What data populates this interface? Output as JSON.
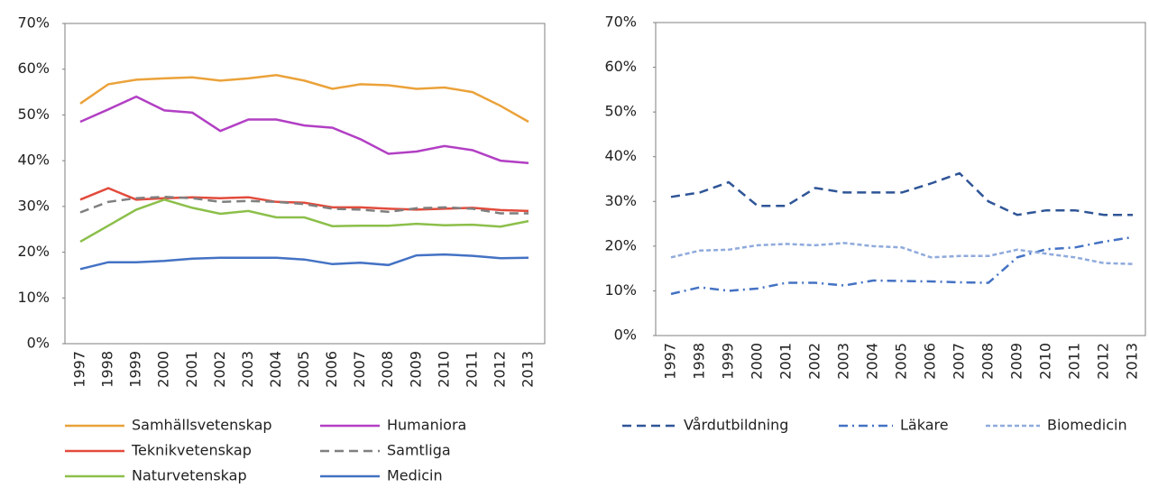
{
  "chart_data": [
    {
      "type": "line",
      "categories": [
        "1997",
        "1998",
        "1999",
        "2000",
        "2001",
        "2002",
        "2003",
        "2004",
        "2005",
        "2006",
        "2007",
        "2008",
        "2009",
        "2010",
        "2011",
        "2012",
        "2013"
      ],
      "ylim": [
        0,
        70
      ],
      "yticks": [
        {
          "value": 0,
          "label": "0%"
        },
        {
          "value": 10,
          "label": "10%"
        },
        {
          "value": 20,
          "label": "20%"
        },
        {
          "value": 30,
          "label": "30%"
        },
        {
          "value": 40,
          "label": "40%"
        },
        {
          "value": 50,
          "label": "50%"
        },
        {
          "value": 60,
          "label": "60%"
        },
        {
          "value": 70,
          "label": "70%"
        }
      ],
      "series": [
        {
          "name": "Samhällsvetenskap",
          "color": "#eba23a",
          "linestyle": "solid",
          "values": [
            52.5,
            56.7,
            57.7,
            58,
            58.2,
            57.5,
            58,
            58.7,
            57.5,
            55.7,
            56.7,
            56.5,
            55.7,
            56,
            55,
            52,
            48.5
          ]
        },
        {
          "name": "Humaniora",
          "color": "#b23fc4",
          "linestyle": "solid",
          "values": [
            48.5,
            51.2,
            54,
            51,
            50.5,
            46.5,
            49,
            49,
            47.7,
            47.2,
            44.7,
            41.5,
            42,
            43.2,
            42.3,
            40,
            39.5
          ]
        },
        {
          "name": "Teknikvetenskap",
          "color": "#e24b3c",
          "linestyle": "solid",
          "values": [
            31.5,
            34,
            31.5,
            31.8,
            32,
            31.8,
            32,
            31,
            30.8,
            29.8,
            29.8,
            29.5,
            29.3,
            29.5,
            29.7,
            29.2,
            29
          ]
        },
        {
          "name": "Samtliga",
          "color": "#7f7f7f",
          "linestyle": "dashed",
          "values": [
            28.7,
            31,
            31.8,
            32.1,
            31.8,
            31,
            31.2,
            31,
            30.5,
            29.5,
            29.3,
            28.8,
            29.6,
            29.8,
            29.5,
            28.5,
            28.5
          ]
        },
        {
          "name": "Naturvetenskap",
          "color": "#8cbf4a",
          "linestyle": "solid",
          "values": [
            22.3,
            25.8,
            29.3,
            31.5,
            29.7,
            28.4,
            29,
            27.6,
            27.6,
            25.7,
            25.8,
            25.8,
            26.2,
            25.9,
            26,
            25.6,
            26.8
          ]
        },
        {
          "name": "Medicin",
          "color": "#4472c4",
          "linestyle": "solid",
          "values": [
            16.3,
            17.8,
            17.8,
            18.1,
            18.6,
            18.8,
            18.8,
            18.8,
            18.4,
            17.4,
            17.7,
            17.2,
            19.3,
            19.5,
            19.2,
            18.7,
            18.8
          ]
        }
      ]
    },
    {
      "type": "line",
      "categories": [
        "1997",
        "1998",
        "1999",
        "2000",
        "2001",
        "2002",
        "2003",
        "2004",
        "2005",
        "2006",
        "2007",
        "2008",
        "2009",
        "2010",
        "2011",
        "2012",
        "2013"
      ],
      "ylim": [
        0,
        70
      ],
      "yticks": [
        {
          "value": 0,
          "label": "0%"
        },
        {
          "value": 10,
          "label": "10%"
        },
        {
          "value": 20,
          "label": "20%"
        },
        {
          "value": 30,
          "label": "30%"
        },
        {
          "value": 40,
          "label": "40%"
        },
        {
          "value": 50,
          "label": "50%"
        },
        {
          "value": 60,
          "label": "60%"
        },
        {
          "value": 70,
          "label": "70%"
        }
      ],
      "series": [
        {
          "name": "Vårdutbildning",
          "color": "#2f5597",
          "linestyle": "dashed",
          "values": [
            31,
            32,
            34.3,
            29,
            29,
            33,
            32,
            32,
            32,
            34,
            36.3,
            30,
            27,
            28,
            28,
            27,
            27
          ]
        },
        {
          "name": "Läkare",
          "color": "#4472c4",
          "linestyle": "dashdot",
          "values": [
            9.3,
            10.8,
            10,
            10.5,
            11.8,
            11.8,
            11.2,
            12.3,
            12.2,
            12.1,
            11.9,
            11.8,
            17.5,
            19.3,
            19.7,
            21,
            22
          ]
        },
        {
          "name": "Biomedicin",
          "color": "#8faadc",
          "linestyle": "dotted",
          "values": [
            17.5,
            19,
            19.2,
            20.2,
            20.5,
            20.2,
            20.7,
            20,
            19.7,
            17.5,
            17.8,
            17.8,
            19.2,
            18.3,
            17.5,
            16.2,
            16
          ]
        }
      ]
    }
  ]
}
